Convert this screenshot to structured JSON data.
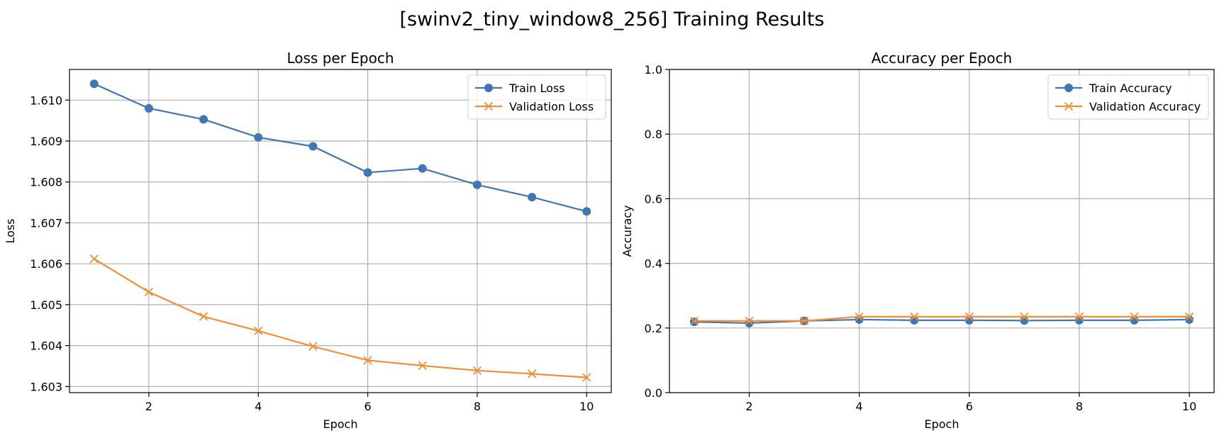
{
  "figure": {
    "suptitle": "[swinv2_tiny_window8_256] Training Results"
  },
  "chart_data": [
    {
      "type": "line",
      "title": "Loss per Epoch",
      "xlabel": "Epoch",
      "ylabel": "Loss",
      "x": [
        1,
        2,
        3,
        4,
        5,
        6,
        7,
        8,
        9,
        10
      ],
      "xlim": [
        0.55,
        10.45
      ],
      "ylim": [
        1.60285,
        1.61075
      ],
      "xticks": [
        2,
        4,
        6,
        8,
        10
      ],
      "yticks": [
        1.603,
        1.604,
        1.605,
        1.606,
        1.607,
        1.608,
        1.609,
        1.61
      ],
      "ytick_labels": [
        "1.603",
        "1.604",
        "1.605",
        "1.606",
        "1.607",
        "1.608",
        "1.609",
        "1.610"
      ],
      "grid": true,
      "legend": "upper-right",
      "series": [
        {
          "name": "Train Loss",
          "marker": "circle",
          "color": "#3f76b4",
          "values": [
            1.6104,
            1.6098,
            1.60953,
            1.60909,
            1.60887,
            1.60823,
            1.60833,
            1.60793,
            1.60763,
            1.60728
          ]
        },
        {
          "name": "Validation Loss",
          "marker": "x",
          "color": "#f28e37",
          "values": [
            1.60612,
            1.60531,
            1.60471,
            1.60436,
            1.60398,
            1.60364,
            1.60351,
            1.60339,
            1.60331,
            1.60322
          ]
        }
      ]
    },
    {
      "type": "line",
      "title": "Accuracy per Epoch",
      "xlabel": "Epoch",
      "ylabel": "Accuracy",
      "x": [
        1,
        2,
        3,
        4,
        5,
        6,
        7,
        8,
        9,
        10
      ],
      "xlim": [
        0.55,
        10.45
      ],
      "ylim": [
        0.0,
        1.0
      ],
      "xticks": [
        2,
        4,
        6,
        8,
        10
      ],
      "yticks": [
        0.0,
        0.2,
        0.4,
        0.6,
        0.8,
        1.0
      ],
      "ytick_labels": [
        "0.0",
        "0.2",
        "0.4",
        "0.6",
        "0.8",
        "1.0"
      ],
      "grid": true,
      "legend": "upper-right",
      "series": [
        {
          "name": "Train Accuracy",
          "marker": "circle",
          "color": "#3f76b4",
          "values": [
            0.219,
            0.215,
            0.222,
            0.226,
            0.224,
            0.224,
            0.223,
            0.224,
            0.224,
            0.226
          ]
        },
        {
          "name": "Validation Accuracy",
          "marker": "x",
          "color": "#f28e37",
          "values": [
            0.222,
            0.222,
            0.222,
            0.235,
            0.235,
            0.235,
            0.235,
            0.235,
            0.235,
            0.235
          ]
        }
      ]
    }
  ]
}
